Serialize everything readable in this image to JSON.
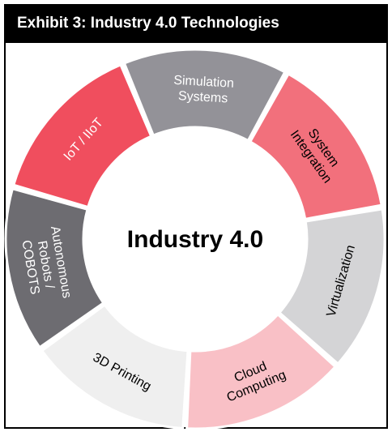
{
  "header": {
    "title": "Exhibit 3: Industry 4.0 Technologies"
  },
  "diagram": {
    "center_label": "Industry 4.0",
    "segments": [
      {
        "lines": [
          "IoT / IIoT"
        ],
        "fill": "#F04E5E",
        "text_color": "#ffffff"
      },
      {
        "lines": [
          "Simulation",
          "Systems"
        ],
        "fill": "#939298",
        "text_color": "#ffffff"
      },
      {
        "lines": [
          "System",
          "Integration"
        ],
        "fill": "#F2707C",
        "text_color": "#000000"
      },
      {
        "lines": [
          "Virtualization"
        ],
        "fill": "#D4D4D6",
        "text_color": "#000000"
      },
      {
        "lines": [
          "Cloud",
          "Computing"
        ],
        "fill": "#F9C0C6",
        "text_color": "#000000"
      },
      {
        "lines": [
          "3D Printing"
        ],
        "fill": "#EFEFEF",
        "text_color": "#000000"
      },
      {
        "lines": [
          "Autonomous",
          "Robots /",
          "COBOTS"
        ],
        "fill": "#6D6C71",
        "text_color": "#ffffff"
      }
    ]
  }
}
